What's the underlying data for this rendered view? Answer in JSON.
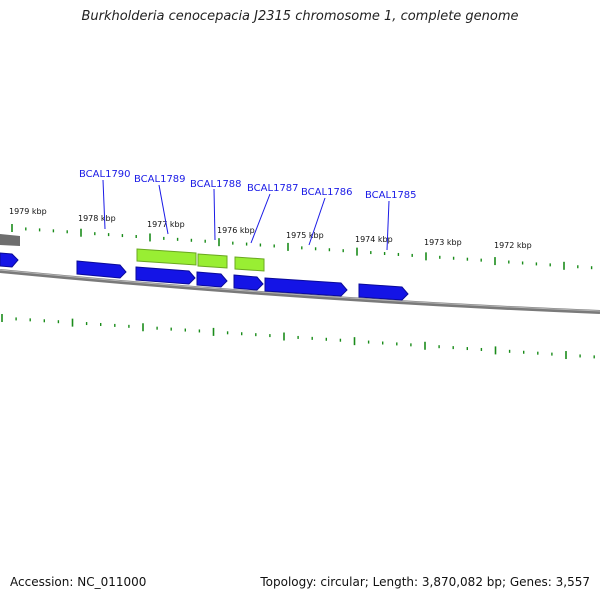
{
  "title": "Burkholderia cenocepacia J2315 chromosome 1, complete genome",
  "footer": {
    "accession": "Accession: NC_011000",
    "summary": "Topology: circular; Length: 3,870,082 bp; Genes: 3,557"
  },
  "colors": {
    "cds_forward": "#1414e6",
    "cds_reverse": "#99ee33",
    "backbone": "#888888",
    "tick": "#1a8c1a",
    "gene_label": "#1a1ae6"
  },
  "scale_labels": [
    "1979 kbp",
    "1978 kbp",
    "1977 kbp",
    "1976 kbp",
    "1975 kbp",
    "1974 kbp",
    "1973 kbp",
    "1972 kbp"
  ],
  "gene_labels": [
    "BCAL1790",
    "BCAL1789",
    "BCAL1788",
    "BCAL1787",
    "BCAL1786",
    "BCAL1785"
  ]
}
